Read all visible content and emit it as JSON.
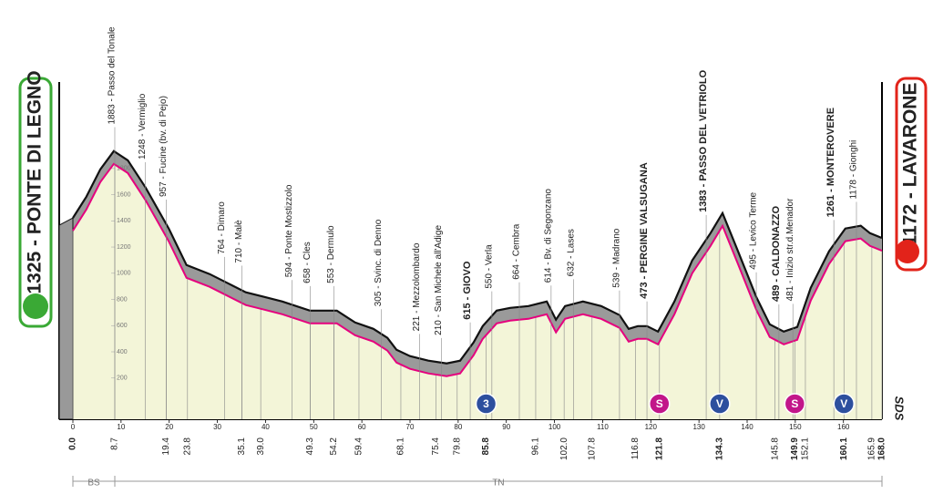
{
  "chart_data": {
    "type": "area",
    "start": "1325 - PONTE DI LEGNO",
    "finish": "1172 - LAVARONE",
    "x": [
      0,
      2.8,
      5.7,
      8.5,
      11.4,
      15.1,
      19.9,
      23.6,
      28.4,
      32.2,
      35.9,
      39.7,
      43.5,
      49.2,
      54.8,
      58.6,
      62.4,
      65.3,
      67.2,
      70,
      73.8,
      77.6,
      80.4,
      83.2,
      85.1,
      88,
      90.8,
      94.6,
      98.4,
      100.3,
      102.2,
      105.9,
      109.7,
      113.5,
      115.4,
      117.3,
      119.2,
      121.5,
      124.9,
      128.6,
      132.4,
      134.9,
      138.1,
      141.9,
      144.7,
      147.6,
      150.4,
      153.2,
      157,
      160.4,
      163.6,
      165.5,
      168
    ],
    "values": [
      1325,
      1487,
      1696,
      1835,
      1765,
      1557,
      1244,
      965,
      896,
      826,
      757,
      722,
      687,
      617,
      617,
      527,
      478,
      409,
      318,
      270,
      235,
      214,
      235,
      374,
      499,
      617,
      638,
      652,
      687,
      548,
      652,
      687,
      652,
      583,
      478,
      499,
      499,
      457,
      687,
      1000,
      1209,
      1362,
      1070,
      722,
      513,
      457,
      492,
      791,
      1070,
      1244,
      1265,
      1209,
      1172
    ],
    "color": "#e5007e",
    "xlim": [
      0,
      168
    ],
    "ylim": [
      -115,
      2460
    ],
    "xticks": [
      0,
      10,
      20,
      30,
      40,
      50,
      60,
      70,
      80,
      90,
      100,
      110,
      120,
      130,
      140,
      150,
      160
    ],
    "yticks": [
      200,
      400,
      600,
      800,
      1000,
      1200,
      1400,
      1600,
      1800
    ],
    "waypoints": [
      {
        "label": "1883 - Passo del Tonale",
        "x": 8.7
      },
      {
        "label": "1248 - Vermiglio",
        "x": 15
      },
      {
        "label": "957 - Fucine (bv. di Pejo)",
        "x": 19.4
      },
      {
        "label": "764 - Dimaro",
        "x": 31.5
      },
      {
        "label": "710 - Malè",
        "x": 35.1
      },
      {
        "label": "594 - Ponte Mostizzolo",
        "x": 45.5
      },
      {
        "label": "658 - Cles",
        "x": 49.3
      },
      {
        "label": "553 - Dermulo",
        "x": 54.2
      },
      {
        "label": "305 - Svinc. di Denno",
        "x": 64
      },
      {
        "label": "221 - Mezzolombardo",
        "x": 72
      },
      {
        "label": "210 - San Michele all'Adige",
        "x": 76.5
      },
      {
        "label": "615 - GIOVO",
        "x": 82.5,
        "bold": true
      },
      {
        "label": "550 - Verla",
        "x": 87
      },
      {
        "label": "664 - Cembra",
        "x": 92.7
      },
      {
        "label": "614 - Bv. di Segonzano",
        "x": 99.3
      },
      {
        "label": "632 - Lases",
        "x": 104
      },
      {
        "label": "539 - Madrano",
        "x": 113.5
      },
      {
        "label": "473 - PERGINE VALSUGANA",
        "x": 119.2,
        "bold": true
      },
      {
        "label": "1383 - PASSO DEL VETRIOLO",
        "x": 131.5,
        "bold": true
      },
      {
        "label": "495 - Levico Terme",
        "x": 141.9
      },
      {
        "label": "489 - CALDONAZZO",
        "x": 146.6,
        "bold": true
      },
      {
        "label": "481 - Inizio str.d.Menador",
        "x": 149.5
      },
      {
        "label": "1261 - MONTEROVERE",
        "x": 158,
        "bold": true
      },
      {
        "label": "1178 - Gionghi",
        "x": 162.7
      }
    ],
    "km_marks": [
      {
        "value": 0,
        "label": "0.0"
      },
      8.7,
      19.4,
      23.8,
      35.1,
      {
        "value": 39,
        "label": "39.0"
      },
      49.3,
      54.2,
      59.4,
      68.1,
      75.4,
      79.8,
      85.8,
      96.1,
      {
        "value": 102,
        "label": "102.0"
      },
      107.8,
      116.8,
      121.8,
      134.3,
      145.8,
      149.9,
      152.1,
      160.1,
      165.9,
      {
        "value": 168,
        "label": "168.0"
      }
    ],
    "climbs": [
      {
        "x": 85.8,
        "label": "3",
        "color": "#2d4f9e"
      },
      {
        "x": 121.8,
        "label": "S",
        "color": "#c2168a"
      },
      {
        "x": 134.3,
        "label": "V",
        "color": "#2d4f9e"
      },
      {
        "x": 149.9,
        "label": "S",
        "color": "#c2168a"
      },
      {
        "x": 160.1,
        "label": "V",
        "color": "#2d4f9e"
      }
    ],
    "regions": [
      {
        "label": "BS",
        "from": 0,
        "to": 8.7
      },
      {
        "label": "TN",
        "from": 8.7,
        "to": 168
      }
    ],
    "logo": "SDS"
  }
}
